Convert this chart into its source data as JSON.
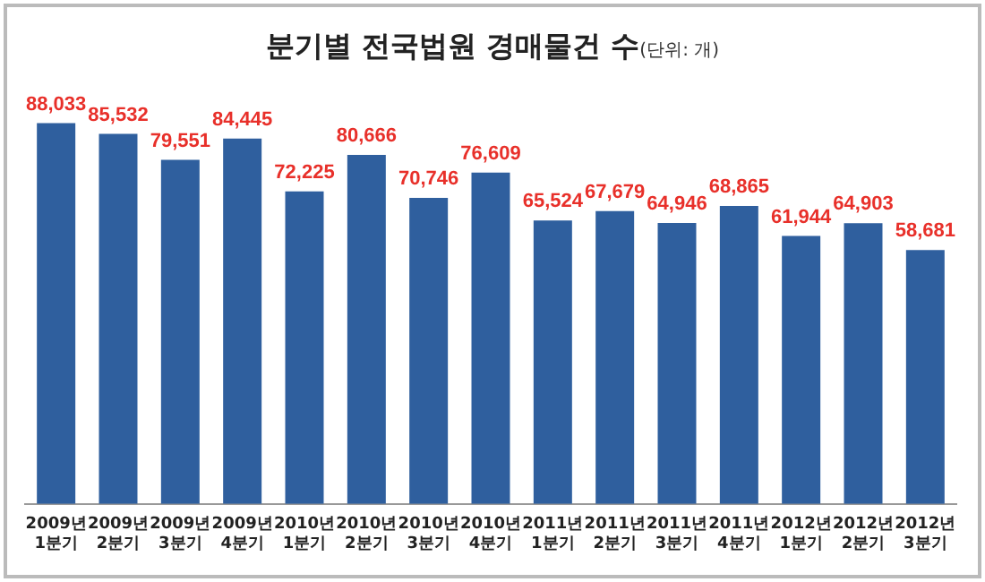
{
  "chart_data": {
    "type": "bar",
    "title": "분기별 전국법원 경매물건 수",
    "subtitle": "(단위: 개)",
    "categories": [
      "2009년 1분기",
      "2009년 2분기",
      "2009년 3분기",
      "2009년 4분기",
      "2010년 1분기",
      "2010년 2분기",
      "2010년 3분기",
      "2010년 4분기",
      "2011년 1분기",
      "2011년 2분기",
      "2011년 3분기",
      "2011년 4분기",
      "2012년 1분기",
      "2012년 2분기",
      "2012년 3분기"
    ],
    "values": [
      88033,
      85532,
      79551,
      84445,
      72225,
      80666,
      70746,
      76609,
      65524,
      67679,
      64946,
      68865,
      61944,
      64903,
      58681
    ],
    "value_labels": [
      "88,033",
      "85,532",
      "79,551",
      "84,445",
      "72,225",
      "80,666",
      "70,746",
      "76,609",
      "65,524",
      "67,679",
      "64,946",
      "68,865",
      "61,944",
      "64,903",
      "58,681"
    ],
    "color": "#2f5f9e",
    "grid": false,
    "legend": false
  }
}
